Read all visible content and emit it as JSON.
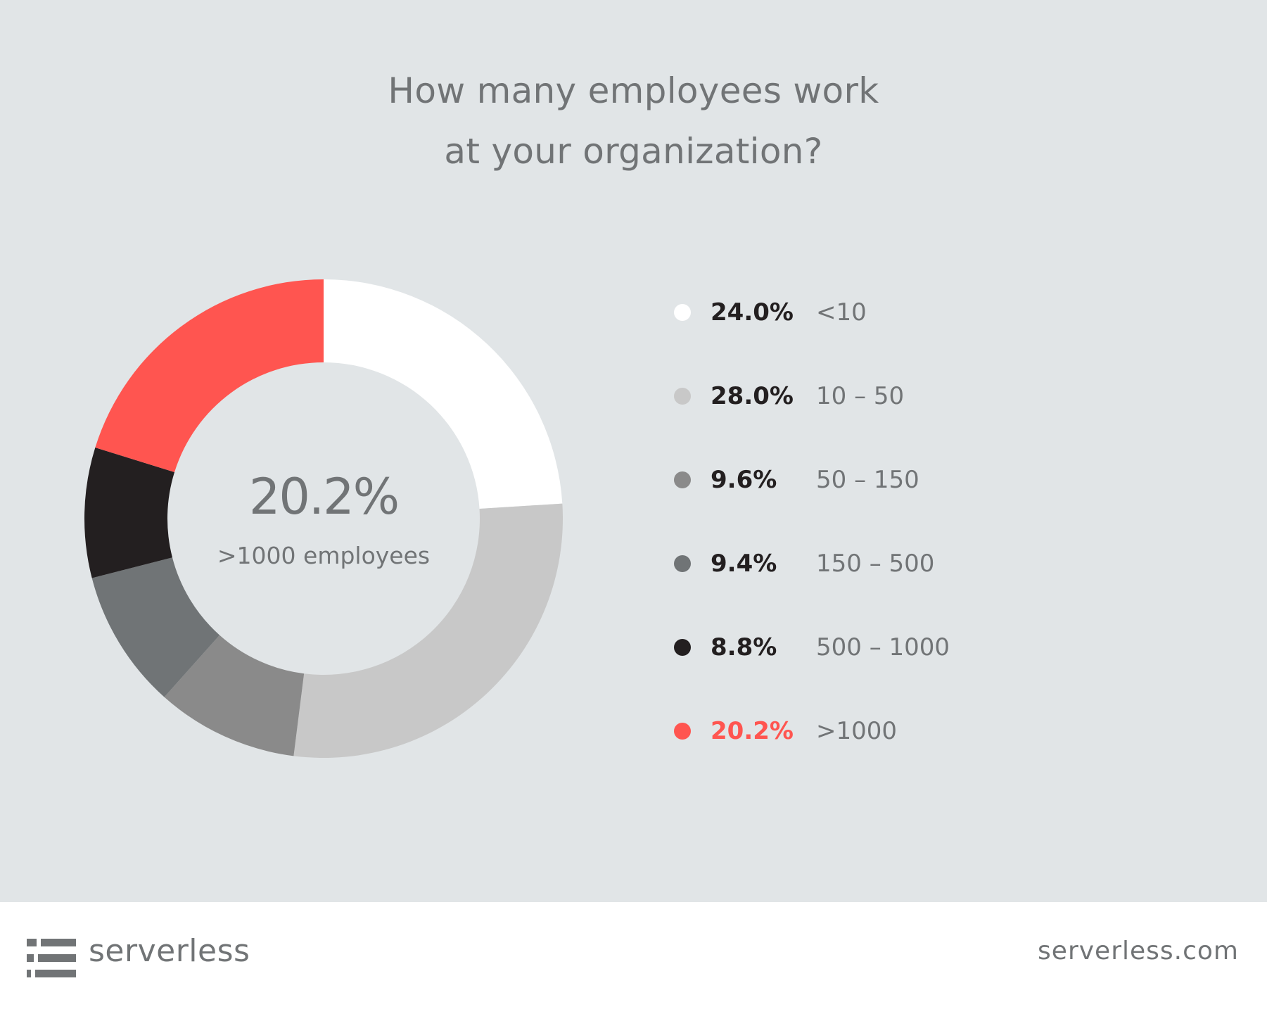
{
  "chart_data": {
    "type": "pie",
    "title": "How many employees work at your organization?",
    "title_lines": [
      "How many employees work",
      "at your organization?"
    ],
    "center": {
      "value": "20.2%",
      "label": ">1000 employees"
    },
    "slices": [
      {
        "label": "<10",
        "value": 24.0,
        "value_text": "24.0%",
        "color": "#ffffff",
        "legend_text_color": "#231f20"
      },
      {
        "label": "10 – 50",
        "value": 28.0,
        "value_text": "28.0%",
        "color": "#c8c8c8",
        "legend_text_color": "#231f20"
      },
      {
        "label": "50 – 150",
        "value": 9.6,
        "value_text": "9.6%",
        "color": "#8a8a8a",
        "legend_text_color": "#231f20"
      },
      {
        "label": "150 – 500",
        "value": 9.4,
        "value_text": "9.4%",
        "color": "#707476",
        "legend_text_color": "#231f20"
      },
      {
        "label": "500 – 1000",
        "value": 8.8,
        "value_text": "8.8%",
        "color": "#231f20",
        "legend_text_color": "#231f20"
      },
      {
        "label": ">1000",
        "value": 20.2,
        "value_text": "20.2%",
        "color": "#ff5550",
        "legend_text_color": "#ff5550"
      }
    ],
    "legend_position": "right",
    "background_color": "#e1e5e7"
  },
  "footer": {
    "brand_name": "serverless",
    "logo_icon": "serverless-logo-icon",
    "url": "serverless.com"
  }
}
